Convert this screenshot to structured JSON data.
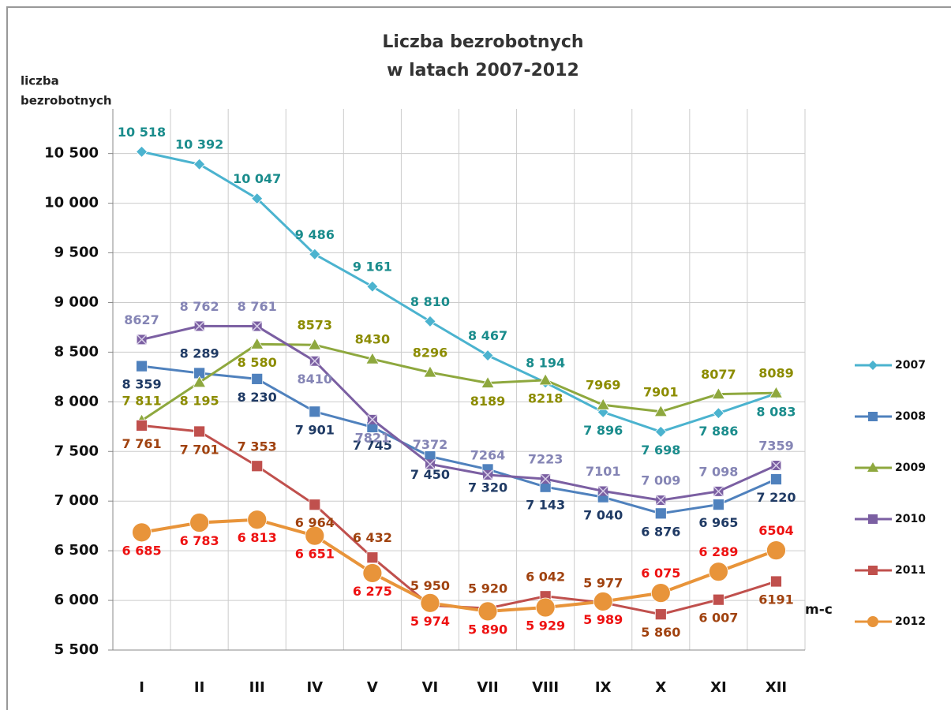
{
  "chart_data": {
    "type": "line",
    "title": [
      "Liczba bezrobotnych",
      "w latach 2007-2012"
    ],
    "ylabel": [
      "liczba",
      "bezrobotnych"
    ],
    "xlabel": "m-c",
    "categories": [
      "I",
      "II",
      "III",
      "IV",
      "V",
      "VI",
      "VII",
      "VIII",
      "IX",
      "X",
      "XI",
      "XII"
    ],
    "ylim": [
      5500,
      10950
    ],
    "yticks": [
      {
        "value": 5500,
        "label": "5 500"
      },
      {
        "value": 6000,
        "label": "6 000"
      },
      {
        "value": 6500,
        "label": "6 500"
      },
      {
        "value": 7000,
        "label": "7 000"
      },
      {
        "value": 7500,
        "label": "7 500"
      },
      {
        "value": 8000,
        "label": "8 000"
      },
      {
        "value": 8500,
        "label": "8 500"
      },
      {
        "value": 9000,
        "label": "9 000"
      },
      {
        "value": 9500,
        "label": "9 500"
      },
      {
        "value": 10000,
        "label": "10 000"
      },
      {
        "value": 10500,
        "label": "10 500"
      }
    ],
    "grid": true,
    "legend": "right",
    "series": [
      {
        "name": "2007",
        "color": "#4bb3cf",
        "label_color": "#1a8c8c",
        "marker": "diamond",
        "values": [
          10518,
          10392,
          10047,
          9486,
          9161,
          8810,
          8467,
          8194,
          7896,
          7698,
          7886,
          8083
        ],
        "value_labels": [
          "10 518",
          "10 392",
          "10 047",
          "9 486",
          "9 161",
          "8 810",
          "8 467",
          "8 194",
          "7 896",
          "7 698",
          "7 886",
          "8 083"
        ]
      },
      {
        "name": "2008",
        "color": "#4f81bd",
        "label_color": "#1f3a64",
        "marker": "square",
        "values": [
          8359,
          8289,
          8230,
          7901,
          7745,
          7450,
          7320,
          7143,
          7040,
          6876,
          6965,
          7220
        ],
        "value_labels": [
          "8 359",
          "8 289",
          "8 230",
          "7 901",
          "7 745",
          "7 450",
          "7 320",
          "7 143",
          "7 040",
          "6 876",
          "6 965",
          "7 220"
        ]
      },
      {
        "name": "2009",
        "color": "#8ea83e",
        "label_color": "#8c8c00",
        "marker": "triangle",
        "values": [
          7811,
          8195,
          8580,
          8573,
          8430,
          8296,
          8189,
          8218,
          7969,
          7901,
          8077,
          8089
        ],
        "value_labels": [
          "7 811",
          "8 195",
          "8 580",
          "8573",
          "8430",
          "8296",
          "8189",
          "8218",
          "7969",
          "7901",
          "8077",
          "8089"
        ]
      },
      {
        "name": "2010",
        "color": "#7b5fa2",
        "label_color": "#8585b5",
        "marker": "xsquare",
        "values": [
          8627,
          8762,
          8761,
          8410,
          7821,
          7372,
          7264,
          7223,
          7101,
          7009,
          7098,
          7359
        ],
        "value_labels": [
          "8627",
          "8 762",
          "8 761",
          "8410",
          "7821",
          "7372",
          "7264",
          "7223",
          "7101",
          "7 009",
          "7 098",
          "7359"
        ]
      },
      {
        "name": "2011",
        "color": "#c0504d",
        "label_color": "#a0420f",
        "marker": "square",
        "values": [
          7761,
          7701,
          7353,
          6964,
          6432,
          5950,
          5920,
          6042,
          5977,
          5860,
          6007,
          6191
        ],
        "value_labels": [
          "7 761",
          "7 701",
          "7 353",
          "6 964",
          "6 432",
          "5 950",
          "5 920",
          "6 042",
          "5 977",
          "5 860",
          "6 007",
          "6191"
        ]
      },
      {
        "name": "2012",
        "color": "#e8943a",
        "label_color": "#ee1111",
        "marker": "circle",
        "values": [
          6685,
          6783,
          6813,
          6651,
          6275,
          5974,
          5890,
          5929,
          5989,
          6075,
          6289,
          6504
        ],
        "value_labels": [
          "6 685",
          "6 783",
          "6 813",
          "6 651",
          "6 275",
          "5 974",
          "5 890",
          "5 929",
          "5 989",
          "6 075",
          "6 289",
          "6504"
        ]
      }
    ]
  }
}
